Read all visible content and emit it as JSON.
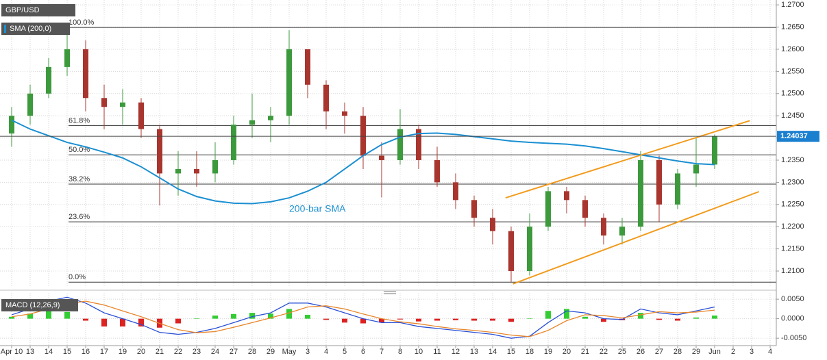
{
  "chart_data": [
    {
      "type": "candlestick",
      "symbol": "GBP/USD",
      "categories": [
        "Apr 10",
        "13",
        "14",
        "15",
        "16",
        "17",
        "19",
        "20",
        "21",
        "22",
        "23",
        "24",
        "27",
        "28",
        "29",
        "May",
        "3",
        "4",
        "5",
        "6",
        "7",
        "8",
        "10",
        "11",
        "12",
        "13",
        "14",
        "15",
        "18",
        "19",
        "20",
        "21",
        "22",
        "25",
        "26",
        "27",
        "28",
        "29",
        "Jun",
        "2",
        "3",
        "4"
      ],
      "open": [
        1.241,
        1.245,
        1.25,
        1.256,
        1.26,
        1.249,
        1.247,
        1.248,
        1.242,
        1.232,
        1.233,
        1.232,
        1.235,
        1.243,
        1.244,
        1.245,
        1.26,
        1.252,
        1.246,
        1.245,
        1.236,
        1.235,
        1.242,
        1.235,
        1.23,
        1.226,
        1.222,
        1.219,
        1.21,
        1.22,
        1.228,
        1.226,
        1.222,
        1.218,
        1.22,
        1.235,
        1.225,
        1.232,
        1.234,
        null,
        null,
        null
      ],
      "high": [
        1.247,
        1.252,
        1.258,
        1.2647,
        1.262,
        1.252,
        1.251,
        1.249,
        1.243,
        1.237,
        1.237,
        1.239,
        1.245,
        1.25,
        1.247,
        1.2643,
        1.26,
        1.253,
        1.248,
        1.247,
        1.239,
        1.2465,
        1.243,
        1.238,
        1.232,
        1.227,
        1.224,
        1.22,
        1.223,
        1.229,
        1.229,
        1.227,
        1.223,
        1.222,
        1.237,
        1.236,
        1.233,
        1.24,
        1.2408,
        null,
        null,
        null
      ],
      "low": [
        1.238,
        1.243,
        1.249,
        1.254,
        1.246,
        1.242,
        1.243,
        1.24,
        1.2248,
        1.227,
        1.229,
        1.23,
        1.234,
        1.24,
        1.239,
        1.243,
        1.249,
        1.242,
        1.241,
        1.233,
        1.2266,
        1.234,
        1.233,
        1.229,
        1.224,
        1.22,
        1.216,
        1.2076,
        1.209,
        1.219,
        1.223,
        1.22,
        1.216,
        1.216,
        1.219,
        1.221,
        1.224,
        1.229,
        1.233,
        null,
        null,
        null
      ],
      "close": [
        1.245,
        1.25,
        1.256,
        1.26,
        1.249,
        1.247,
        1.248,
        1.242,
        1.232,
        1.233,
        1.232,
        1.235,
        1.243,
        1.244,
        1.245,
        1.26,
        1.252,
        1.246,
        1.245,
        1.236,
        1.235,
        1.242,
        1.235,
        1.23,
        1.226,
        1.222,
        1.219,
        1.21,
        1.22,
        1.228,
        1.226,
        1.222,
        1.218,
        1.22,
        1.235,
        1.225,
        1.232,
        1.234,
        1.24037,
        null,
        null,
        null
      ],
      "colors": {
        "up": "#3c9a3c",
        "down": "#a8352e"
      },
      "overlays": [
        {
          "name": "SMA (200,0)",
          "color": "#1b8fd2",
          "values": [
            1.244,
            1.242,
            1.2405,
            1.239,
            1.238,
            1.2368,
            1.2355,
            1.2335,
            1.231,
            1.2285,
            1.2268,
            1.2258,
            1.2253,
            1.2252,
            1.2256,
            1.2265,
            1.228,
            1.23,
            1.233,
            1.236,
            1.2385,
            1.2402,
            1.241,
            1.2411,
            1.2408,
            1.2403,
            1.2398,
            1.2393,
            1.239,
            1.2388,
            1.2386,
            1.2382,
            1.2376,
            1.2369,
            1.2362,
            1.2355,
            1.2348,
            1.2342,
            1.234,
            null,
            null,
            null
          ]
        }
      ],
      "annotations": [
        {
          "text": "200-bar SMA",
          "color": "#1b8fd2"
        }
      ],
      "fib_levels": [
        {
          "label": "100.0%",
          "value": 1.2649
        },
        {
          "label": "61.8%",
          "value": 1.2428
        },
        {
          "label": "50.0%",
          "value": 1.2362
        },
        {
          "label": "38.2%",
          "value": 1.2296
        },
        {
          "label": "23.6%",
          "value": 1.2211
        },
        {
          "label": "0.0%",
          "value": 1.2075
        }
      ],
      "trend_lines": [
        {
          "x": [
            26.7,
            39.9
          ],
          "y": [
            1.2265,
            1.2439
          ]
        },
        {
          "x": [
            27.1,
            40.4
          ],
          "y": [
            1.2071,
            1.2279
          ]
        }
      ],
      "trend_color": "#f29b1d",
      "last_price": 1.24037,
      "last_price_color": "#1b7fd0",
      "ylim": [
        1.2063,
        1.2711
      ],
      "yticks": [
        {
          "value": 1.21,
          "label": "1.2100"
        },
        {
          "value": 1.215,
          "label": "1.2150"
        },
        {
          "value": 1.22,
          "label": "1.2200"
        },
        {
          "value": 1.225,
          "label": "1.2250"
        },
        {
          "value": 1.23,
          "label": "1.2300"
        },
        {
          "value": 1.235,
          "label": "1.2350"
        },
        {
          "value": 1.24,
          "label": "1.2400"
        },
        {
          "value": 1.245,
          "label": "1.2450"
        },
        {
          "value": 1.25,
          "label": "1.2500"
        },
        {
          "value": 1.255,
          "label": "1.2550"
        },
        {
          "value": 1.26,
          "label": "1.2600"
        },
        {
          "value": 1.265,
          "label": "1.2650"
        },
        {
          "value": 1.27,
          "label": "1.2700"
        }
      ],
      "grid": true
    },
    {
      "type": "macd",
      "name": "MACD (12,26,9)",
      "series": [
        {
          "color": "#2a4fd6",
          "values": [
            0.001,
            0.0025,
            0.0045,
            0.0055,
            0.004,
            0.0015,
            0.0,
            -0.0015,
            -0.0035,
            -0.004,
            -0.0035,
            -0.0025,
            -0.001,
            0.0005,
            0.0015,
            0.004,
            0.004,
            0.003,
            0.0015,
            0.0,
            -0.001,
            -0.001,
            -0.002,
            -0.0025,
            -0.003,
            -0.0035,
            -0.004,
            -0.005,
            -0.0045,
            -0.001,
            0.002,
            0.0015,
            0.0,
            -0.0002,
            0.0025,
            0.0015,
            0.001,
            0.002,
            0.003,
            null,
            null,
            null
          ]
        },
        {
          "color": "#e8862a",
          "values": [
            0.0005,
            0.0012,
            0.0025,
            0.0038,
            0.0045,
            0.0035,
            0.002,
            0.0005,
            -0.0012,
            -0.0028,
            -0.0036,
            -0.0033,
            -0.0022,
            -0.001,
            0.0002,
            0.0015,
            0.003,
            0.0033,
            0.0025,
            0.0012,
            0.0,
            -0.0008,
            -0.0013,
            -0.002,
            -0.0026,
            -0.003,
            -0.0035,
            -0.0042,
            -0.0046,
            -0.003,
            -0.0005,
            0.001,
            0.0008,
            0.0002,
            0.001,
            0.0018,
            0.0015,
            0.0017,
            0.0022,
            null,
            null,
            null
          ]
        }
      ],
      "histogram": {
        "colors": {
          "up": "#33cc33",
          "down": "#dd2222"
        },
        "values": [
          0.0005,
          0.0013,
          0.002,
          0.0017,
          -0.0005,
          -0.002,
          -0.002,
          -0.002,
          -0.0023,
          -0.0012,
          0.0001,
          0.0008,
          0.0012,
          0.0015,
          0.0013,
          0.0025,
          0.001,
          -0.0003,
          -0.001,
          -0.0012,
          -0.001,
          -0.0002,
          -0.0007,
          -0.0005,
          -0.0004,
          -0.0005,
          -0.0005,
          -0.0008,
          0.0001,
          0.002,
          0.0025,
          0.0005,
          -0.0008,
          -0.0004,
          0.0015,
          -0.0003,
          -0.0005,
          0.0003,
          0.0008,
          null,
          null,
          null
        ]
      },
      "ylim": [
        -0.0069,
        0.0066
      ],
      "yticks": [
        {
          "value": 0.005,
          "label": "0.0050"
        },
        {
          "value": 0,
          "label": "0.0000"
        },
        {
          "value": -0.005,
          "label": "-0.0050"
        }
      ],
      "grid": true
    }
  ]
}
